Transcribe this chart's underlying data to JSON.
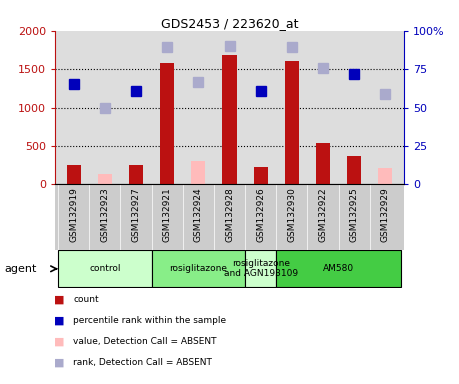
{
  "title": "GDS2453 / 223620_at",
  "samples": [
    "GSM132919",
    "GSM132923",
    "GSM132927",
    "GSM132921",
    "GSM132924",
    "GSM132928",
    "GSM132926",
    "GSM132930",
    "GSM132922",
    "GSM132925",
    "GSM132929"
  ],
  "counts": [
    250,
    null,
    250,
    1580,
    null,
    1680,
    230,
    1600,
    540,
    370,
    null
  ],
  "counts_absent": [
    null,
    130,
    null,
    null,
    310,
    null,
    null,
    null,
    null,
    null,
    210
  ],
  "percentile_ranks": [
    1300,
    null,
    1210,
    null,
    null,
    null,
    1210,
    null,
    null,
    1430,
    null
  ],
  "percentile_ranks_absent": [
    null,
    1000,
    null,
    1790,
    1330,
    1800,
    null,
    1790,
    1520,
    null,
    1175
  ],
  "ylim_left": [
    0,
    2000
  ],
  "ylim_right": [
    0,
    100
  ],
  "yticks_left": [
    0,
    500,
    1000,
    1500,
    2000
  ],
  "yticks_right": [
    0,
    25,
    50,
    75,
    100
  ],
  "ytick_labels_left": [
    "0",
    "500",
    "1000",
    "1500",
    "2000"
  ],
  "ytick_labels_right": [
    "0",
    "25",
    "50",
    "75",
    "100%"
  ],
  "bar_color": "#bb1111",
  "bar_absent_color": "#ffbbbb",
  "rank_color": "#0000bb",
  "rank_absent_color": "#aaaacc",
  "agent_groups": [
    {
      "label": "control",
      "start": 0,
      "end": 3,
      "color": "#ccffcc"
    },
    {
      "label": "rosiglitazone",
      "start": 3,
      "end": 6,
      "color": "#88ee88"
    },
    {
      "label": "rosiglitazone\nand AGN193109",
      "start": 6,
      "end": 7,
      "color": "#ccffcc"
    },
    {
      "label": "AM580",
      "start": 7,
      "end": 11,
      "color": "#44cc44"
    }
  ],
  "legend_items": [
    {
      "color": "#bb1111",
      "label": "count"
    },
    {
      "color": "#0000bb",
      "label": "percentile rank within the sample"
    },
    {
      "color": "#ffbbbb",
      "label": "value, Detection Call = ABSENT"
    },
    {
      "color": "#aaaacc",
      "label": "rank, Detection Call = ABSENT"
    }
  ],
  "plot_bg_color": "#dddddd",
  "tick_label_bg_color": "#cccccc",
  "bar_width": 0.45,
  "marker_size": 7
}
